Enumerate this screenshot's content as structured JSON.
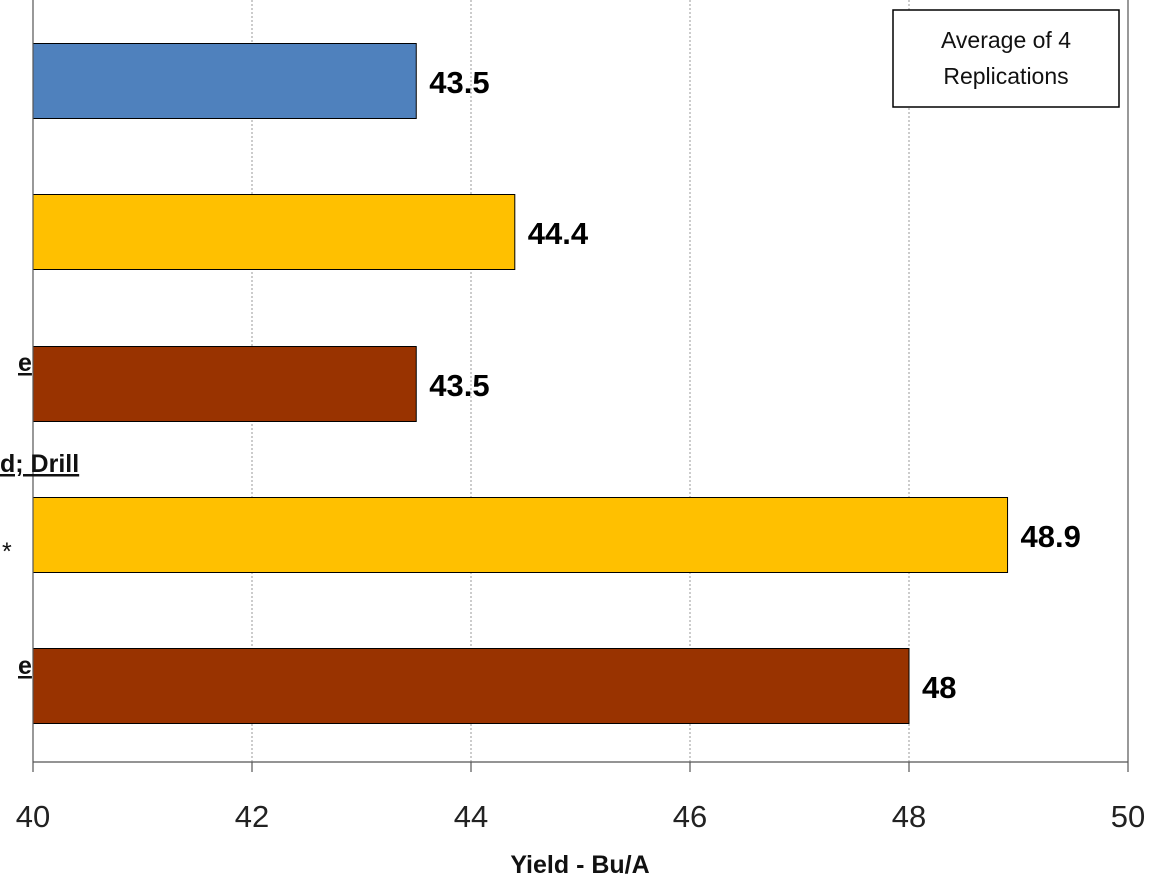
{
  "chart_data": {
    "type": "bar",
    "orientation": "horizontal",
    "values": [
      43.5,
      44.4,
      43.5,
      48.9,
      48
    ],
    "bar_colors": [
      "#4f81bd",
      "#ffc000",
      "#993300",
      "#ffc000",
      "#993300"
    ],
    "data_labels": [
      "43.5",
      "44.4",
      "43.5",
      "48.9",
      "48"
    ],
    "category_fragments": [
      "e",
      "d; Drill",
      "*",
      "e"
    ],
    "xlabel": "Yield - Bu/A",
    "xlim": [
      40,
      50
    ],
    "xticks": [
      "40",
      "42",
      "44",
      "46",
      "48",
      "50"
    ],
    "grid": true,
    "annotation": "Average of 4 Replications",
    "annotation_placement": "top-right"
  }
}
